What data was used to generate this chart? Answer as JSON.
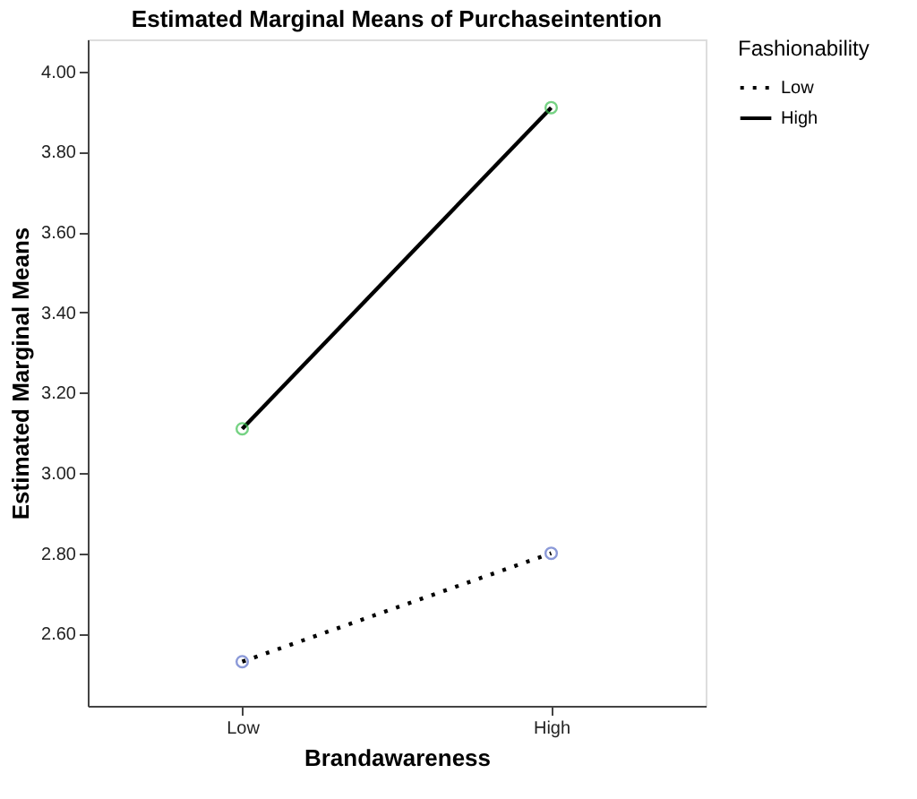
{
  "chart_data": {
    "type": "line",
    "title": "Estimated Marginal Means of Purchaseintention",
    "xlabel": "Brandawareness",
    "ylabel": "Estimated Marginal Means",
    "legend_title": "Fashionability",
    "categories": [
      "Low",
      "High"
    ],
    "series": [
      {
        "name": "Low",
        "color": "#000000",
        "colors": [
          "#5a6ec8",
          "#5a6ec8"
        ],
        "line_style": "dotted",
        "values": [
          2.53,
          2.8
        ]
      },
      {
        "name": "High",
        "color": "#000000",
        "colors": [
          "#3cc050",
          "#3cc050"
        ],
        "line_style": "solid",
        "values": [
          3.11,
          3.91
        ]
      }
    ],
    "ylim": [
      2.42,
      4.08
    ],
    "yticks": [
      {
        "value": 2.6,
        "label": "2.60"
      },
      {
        "value": 2.8,
        "label": "2.80"
      },
      {
        "value": 3.0,
        "label": "3.00"
      },
      {
        "value": 3.2,
        "label": "3.20"
      },
      {
        "value": 3.4,
        "label": "3.40"
      },
      {
        "value": 3.6,
        "label": "3.60"
      },
      {
        "value": 3.8,
        "label": "3.80"
      },
      {
        "value": 4.0,
        "label": "4.00"
      }
    ],
    "marker": "circle",
    "grid": false,
    "legend": "top right"
  }
}
